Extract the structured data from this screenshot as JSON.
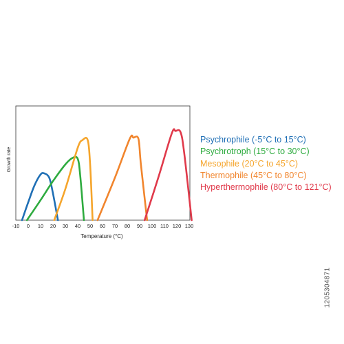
{
  "chart_data": {
    "type": "line",
    "xlabel": "Temperature (°C)",
    "ylabel": "Growth rate",
    "xlim": [
      -10,
      135
    ],
    "ylim": [
      0,
      1
    ],
    "x_ticks": [
      -10,
      0,
      10,
      20,
      30,
      40,
      50,
      60,
      70,
      80,
      90,
      100,
      110,
      120,
      130
    ],
    "grid": false,
    "legend_position": "right",
    "series": [
      {
        "name": "Psychrophile (-5°C to 15°C)",
        "color": "#1f6fb5",
        "x": [
          -5,
          0,
          5,
          10,
          13,
          17,
          20,
          24
        ],
        "y": [
          0,
          0.16,
          0.31,
          0.41,
          0.42,
          0.38,
          0.24,
          0
        ]
      },
      {
        "name": "Psychrotroph (15°C to 30°C)",
        "color": "#2eab3f",
        "x": [
          -1,
          10,
          20,
          30,
          36,
          40,
          42,
          45
        ],
        "y": [
          0,
          0.18,
          0.35,
          0.5,
          0.56,
          0.55,
          0.4,
          0
        ]
      },
      {
        "name": "Mesophile (20°C to 45°C)",
        "color": "#f5a52c",
        "x": [
          21,
          30,
          40,
          44,
          48,
          50,
          52
        ],
        "y": [
          0,
          0.28,
          0.65,
          0.72,
          0.72,
          0.5,
          0
        ]
      },
      {
        "name": "Thermophile (45°C to 80°C)",
        "color": "#f1852d",
        "x": [
          56,
          70,
          82,
          85,
          89,
          91,
          96
        ],
        "y": [
          0,
          0.38,
          0.73,
          0.74,
          0.73,
          0.5,
          0
        ]
      },
      {
        "name": "Hyperthermophile (80°C to 121°C)",
        "color": "#e03a4b",
        "x": [
          94,
          105,
          116,
          119,
          123,
          126,
          132
        ],
        "y": [
          0,
          0.38,
          0.78,
          0.8,
          0.79,
          0.6,
          0
        ]
      }
    ]
  },
  "side_text": "1205304871"
}
